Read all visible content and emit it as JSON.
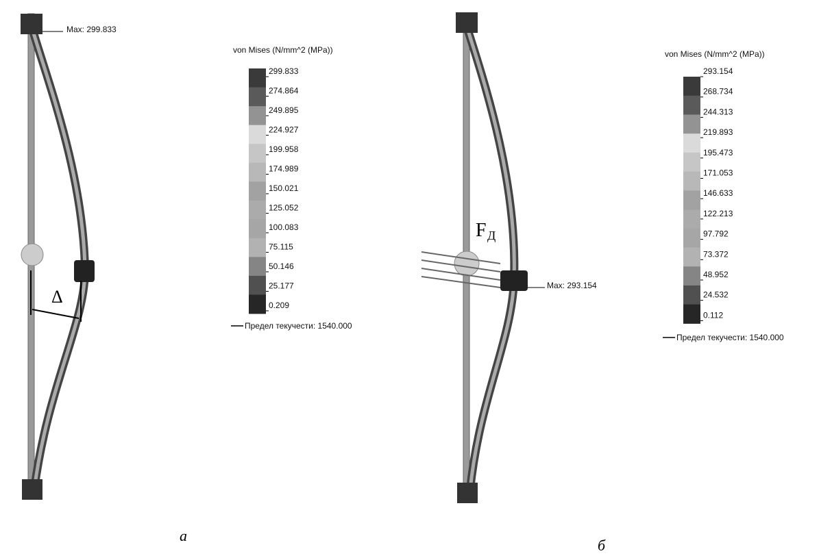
{
  "panels": [
    {
      "max_label": "Max: 299.833",
      "legend_title": "von Mises (N/mm^2 (MPa))",
      "legend_values": [
        "299.833",
        "274.864",
        "249.895",
        "224.927",
        "199.958",
        "174.989",
        "150.021",
        "125.052",
        "100.083",
        "75.115",
        "50.146",
        "25.177",
        "0.209"
      ],
      "yield_label": "Предел текучести: 1540.000",
      "annotation": "Δ",
      "caption": "а"
    },
    {
      "max_label": "Max: 293.154",
      "legend_title": "von Mises (N/mm^2 (MPa))",
      "legend_values": [
        "293.154",
        "268.734",
        "244.313",
        "219.893",
        "195.473",
        "171.053",
        "146.633",
        "122.213",
        "97.792",
        "73.372",
        "48.952",
        "24.532",
        "0.112"
      ],
      "yield_label": "Предел текучести: 1540.000",
      "annotation": "F",
      "annotation_subscript": "Д",
      "caption": "б"
    }
  ]
}
